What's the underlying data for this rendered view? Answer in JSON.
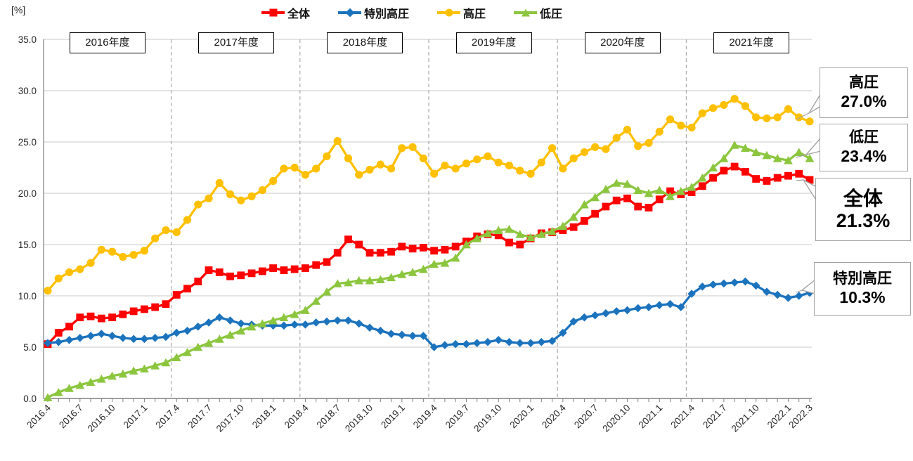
{
  "chart": {
    "y_unit": "[%]",
    "y_tick_labels": [
      "0.0",
      "5.0",
      "10.0",
      "15.0",
      "20.0",
      "25.0",
      "30.0",
      "35.0"
    ],
    "year_boxes": [
      "2016年度",
      "2017年度",
      "2018年度",
      "2019年度",
      "2020年度",
      "2021年度"
    ],
    "x_tick_labels": [
      "2016.4",
      "2016.7",
      "2016.10",
      "2017.1",
      "2017.4",
      "2017.7",
      "2017.10",
      "2018.1",
      "2018.4",
      "2018.7",
      "2018.10",
      "2019.1",
      "2019.4",
      "2019.7",
      "2019.10",
      "2020.1",
      "2020.4",
      "2020.7",
      "2020.10",
      "2021.1",
      "2021.4",
      "2021.7",
      "2021.10",
      "2022.1",
      "2022.3"
    ],
    "grid_color": "#C8C8C8",
    "axis_color": "#808080",
    "dash_color": "#ABABAB"
  },
  "chart_data": {
    "type": "line",
    "title": "",
    "xlabel": "",
    "ylabel": "[%]",
    "ylim": [
      0,
      35
    ],
    "grid": "horizontal",
    "legend_position": "top",
    "x": [
      "2016.4",
      "2016.5",
      "2016.6",
      "2016.7",
      "2016.8",
      "2016.9",
      "2016.10",
      "2016.11",
      "2016.12",
      "2017.1",
      "2017.2",
      "2017.3",
      "2017.4",
      "2017.5",
      "2017.6",
      "2017.7",
      "2017.8",
      "2017.9",
      "2017.10",
      "2017.11",
      "2017.12",
      "2018.1",
      "2018.2",
      "2018.3",
      "2018.4",
      "2018.5",
      "2018.6",
      "2018.7",
      "2018.8",
      "2018.9",
      "2018.10",
      "2018.11",
      "2018.12",
      "2019.1",
      "2019.2",
      "2019.3",
      "2019.4",
      "2019.5",
      "2019.6",
      "2019.7",
      "2019.8",
      "2019.9",
      "2019.10",
      "2019.11",
      "2019.12",
      "2020.1",
      "2020.2",
      "2020.3",
      "2020.4",
      "2020.5",
      "2020.6",
      "2020.7",
      "2020.8",
      "2020.9",
      "2020.10",
      "2020.11",
      "2020.12",
      "2021.1",
      "2021.2",
      "2021.3",
      "2021.4",
      "2021.5",
      "2021.6",
      "2021.7",
      "2021.8",
      "2021.9",
      "2021.10",
      "2021.11",
      "2021.12",
      "2022.1",
      "2022.2",
      "2022.3"
    ],
    "series": [
      {
        "key": "zentai",
        "name": "全体",
        "marker": "square",
        "color": "#FE0000",
        "values": [
          5.3,
          6.4,
          7.0,
          7.9,
          8.0,
          7.8,
          7.9,
          8.2,
          8.5,
          8.7,
          8.9,
          9.2,
          10.1,
          10.7,
          11.4,
          12.5,
          12.3,
          11.9,
          12.0,
          12.2,
          12.4,
          12.7,
          12.5,
          12.6,
          12.7,
          13.0,
          13.3,
          14.2,
          15.5,
          15.0,
          14.2,
          14.2,
          14.3,
          14.8,
          14.6,
          14.7,
          14.4,
          14.5,
          14.8,
          15.3,
          15.8,
          16.0,
          15.9,
          15.2,
          15.0,
          15.6,
          16.1,
          16.2,
          16.4,
          16.7,
          17.3,
          18.0,
          18.7,
          19.3,
          19.5,
          18.7,
          18.6,
          19.4,
          20.2,
          19.9,
          20.1,
          20.7,
          21.5,
          22.2,
          22.6,
          22.1,
          21.4,
          21.2,
          21.5,
          21.7,
          21.9,
          21.3
        ]
      },
      {
        "key": "tokubetsu-koatsu",
        "name": "特別高圧",
        "marker": "diamond",
        "color": "#1B73BE",
        "values": [
          5.4,
          5.5,
          5.7,
          5.9,
          6.1,
          6.3,
          6.1,
          5.9,
          5.8,
          5.8,
          5.9,
          6.0,
          6.4,
          6.6,
          7.0,
          7.4,
          7.9,
          7.6,
          7.3,
          7.2,
          7.1,
          7.1,
          7.1,
          7.2,
          7.2,
          7.4,
          7.5,
          7.6,
          7.6,
          7.3,
          6.9,
          6.6,
          6.3,
          6.2,
          6.1,
          6.1,
          5.0,
          5.2,
          5.3,
          5.3,
          5.4,
          5.5,
          5.7,
          5.5,
          5.4,
          5.4,
          5.5,
          5.6,
          6.4,
          7.5,
          7.9,
          8.1,
          8.3,
          8.5,
          8.6,
          8.8,
          8.9,
          9.1,
          9.2,
          8.9,
          10.2,
          10.9,
          11.1,
          11.2,
          11.3,
          11.4,
          11.0,
          10.4,
          10.1,
          9.8,
          10.0,
          10.3
        ]
      },
      {
        "key": "koatsu",
        "name": "高圧",
        "marker": "circle",
        "color": "#FFC000",
        "values": [
          10.5,
          11.7,
          12.3,
          12.6,
          13.2,
          14.5,
          14.3,
          13.8,
          14.0,
          14.4,
          15.6,
          16.4,
          16.2,
          17.4,
          18.9,
          19.5,
          21.0,
          19.9,
          19.3,
          19.7,
          20.3,
          21.2,
          22.4,
          22.5,
          21.8,
          22.4,
          23.6,
          25.1,
          23.4,
          21.8,
          22.3,
          22.8,
          22.4,
          24.4,
          24.5,
          23.4,
          21.9,
          22.7,
          22.4,
          22.9,
          23.3,
          23.6,
          23.0,
          22.7,
          22.2,
          21.9,
          23.0,
          24.4,
          22.4,
          23.4,
          24.0,
          24.5,
          24.3,
          25.4,
          26.2,
          24.6,
          24.9,
          26.0,
          27.2,
          26.6,
          26.4,
          27.8,
          28.3,
          28.6,
          29.2,
          28.5,
          27.4,
          27.3,
          27.4,
          28.2,
          27.4,
          27.0
        ]
      },
      {
        "key": "teiatsu",
        "name": "低圧",
        "marker": "triangle",
        "color": "#8CC63F",
        "values": [
          0.1,
          0.6,
          1.0,
          1.3,
          1.6,
          1.9,
          2.2,
          2.4,
          2.7,
          2.9,
          3.2,
          3.5,
          4.0,
          4.5,
          5.0,
          5.4,
          5.8,
          6.2,
          6.6,
          7.0,
          7.3,
          7.6,
          7.9,
          8.2,
          8.6,
          9.5,
          10.4,
          11.2,
          11.3,
          11.5,
          11.5,
          11.6,
          11.8,
          12.1,
          12.3,
          12.6,
          13.1,
          13.2,
          13.7,
          15.0,
          15.6,
          16.1,
          16.4,
          16.5,
          16.0,
          15.7,
          16.0,
          16.3,
          16.8,
          17.7,
          18.9,
          19.6,
          20.4,
          21.0,
          20.9,
          20.3,
          20.0,
          20.3,
          19.7,
          20.2,
          20.6,
          21.5,
          22.5,
          23.4,
          24.7,
          24.4,
          24.0,
          23.7,
          23.4,
          23.2,
          24.0,
          23.4
        ]
      }
    ]
  },
  "callouts": [
    {
      "series": "koatsu",
      "title": "高圧",
      "value": "27.0%"
    },
    {
      "series": "teiatsu",
      "title": "低圧",
      "value": "23.4%"
    },
    {
      "series": "zentai",
      "title": "全体",
      "value": "21.3%"
    },
    {
      "series": "tokubetsu-koatsu",
      "title": "特別高圧",
      "value": "10.3%"
    }
  ]
}
